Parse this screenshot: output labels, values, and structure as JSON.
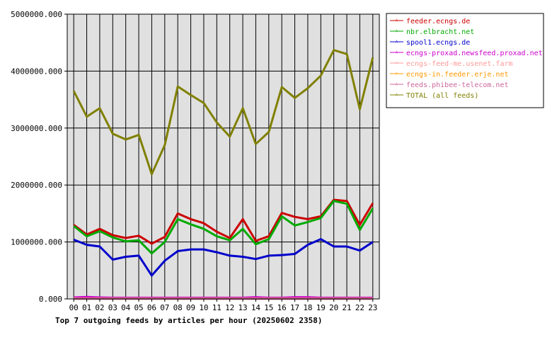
{
  "chart_data": {
    "type": "line",
    "title": "Top 7 outgoing feeds by articles per hour (20250602 2358)",
    "categories": [
      "00",
      "01",
      "02",
      "03",
      "04",
      "05",
      "06",
      "07",
      "08",
      "09",
      "10",
      "11",
      "12",
      "13",
      "14",
      "15",
      "16",
      "17",
      "18",
      "19",
      "20",
      "21",
      "22",
      "23"
    ],
    "ylim": [
      0,
      5000000
    ],
    "yticks": [
      0,
      1000000,
      2000000,
      3000000,
      4000000,
      5000000
    ],
    "ytick_labels": [
      "0.000",
      "1000000.000",
      "2000000.000",
      "3000000.000",
      "4000000.000",
      "5000000.000"
    ],
    "grid": true,
    "legend_position": "right",
    "series": [
      {
        "name": "feeder.ecngs.de",
        "color": "#cc0000",
        "values": [
          1300000,
          1130000,
          1230000,
          1120000,
          1070000,
          1110000,
          970000,
          1090000,
          1500000,
          1400000,
          1330000,
          1180000,
          1070000,
          1400000,
          1020000,
          1100000,
          1510000,
          1440000,
          1400000,
          1450000,
          1740000,
          1720000,
          1300000,
          1680000
        ]
      },
      {
        "name": "nbr.elbracht.net",
        "color": "#00aa00",
        "values": [
          1280000,
          1100000,
          1190000,
          1080000,
          1010000,
          1030000,
          800000,
          1000000,
          1400000,
          1310000,
          1230000,
          1100000,
          1030000,
          1230000,
          960000,
          1050000,
          1450000,
          1290000,
          1350000,
          1420000,
          1720000,
          1670000,
          1210000,
          1590000
        ]
      },
      {
        "name": "spool1.ecngs.de",
        "color": "#0000cc",
        "values": [
          1040000,
          950000,
          920000,
          690000,
          740000,
          760000,
          410000,
          670000,
          840000,
          870000,
          870000,
          820000,
          760000,
          740000,
          700000,
          760000,
          770000,
          790000,
          950000,
          1050000,
          920000,
          920000,
          850000,
          1000000
        ]
      },
      {
        "name": "ecngs-proxad.newsfeed.proxad.net",
        "color": "#cc00cc",
        "values": [
          25000,
          35000,
          25000,
          20000,
          20000,
          20000,
          20000,
          20000,
          20000,
          20000,
          20000,
          20000,
          20000,
          20000,
          30000,
          20000,
          20000,
          30000,
          30000,
          20000,
          20000,
          20000,
          20000,
          20000
        ]
      },
      {
        "name": "ecngs-feed-me.usenet.farm",
        "color": "#ff9999",
        "values": [
          8000,
          8000,
          8000,
          8000,
          8000,
          8000,
          8000,
          8000,
          8000,
          8000,
          8000,
          8000,
          8000,
          8000,
          8000,
          8000,
          8000,
          8000,
          8000,
          8000,
          8000,
          8000,
          8000,
          8000
        ]
      },
      {
        "name": "ecngs-in.feeder.erje.net",
        "color": "#ff9900",
        "values": [
          5000,
          5000,
          5000,
          5000,
          5000,
          5000,
          5000,
          5000,
          5000,
          5000,
          5000,
          5000,
          5000,
          5000,
          5000,
          5000,
          5000,
          5000,
          5000,
          5000,
          5000,
          5000,
          5000,
          5000
        ]
      },
      {
        "name": "feeds.phibee-telecom.net",
        "color": "#cc6699",
        "values": [
          3000,
          3000,
          3000,
          3000,
          3000,
          3000,
          3000,
          3000,
          3000,
          3000,
          3000,
          3000,
          3000,
          3000,
          3000,
          3000,
          3000,
          3000,
          3000,
          3000,
          3000,
          3000,
          3000,
          3000
        ]
      },
      {
        "name": "TOTAL (all feeds)",
        "color": "#808000",
        "values": [
          3650000,
          3200000,
          3350000,
          2900000,
          2800000,
          2880000,
          2190000,
          2700000,
          3730000,
          3580000,
          3440000,
          3100000,
          2850000,
          3350000,
          2720000,
          2930000,
          3720000,
          3530000,
          3700000,
          3920000,
          4370000,
          4300000,
          3330000,
          4240000
        ]
      }
    ]
  }
}
